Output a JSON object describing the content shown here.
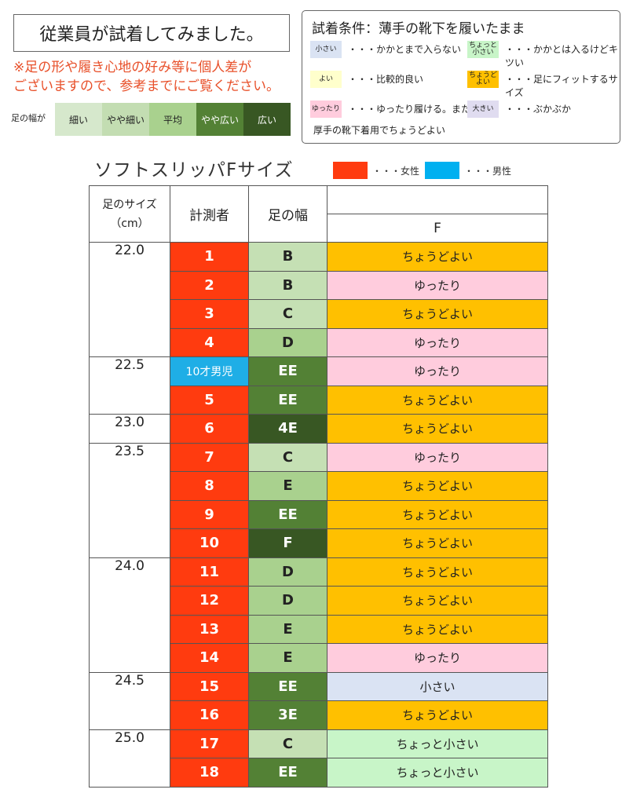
{
  "title": "従業員が試着してみました。",
  "note_lines": [
    "※足の形や履き心地の好み等に個人差が",
    "ございますので、参考までにご覧ください。"
  ],
  "width_scale": {
    "label": "足の幅が",
    "items": [
      {
        "label": "細い",
        "color": "#d6e8cc"
      },
      {
        "label": "やや細い",
        "color": "#c3ddb2"
      },
      {
        "label": "平均",
        "color": "#a9d18e"
      },
      {
        "label": "やや広い",
        "color": "#538135",
        "dark": true
      },
      {
        "label": "広い",
        "color": "#385723",
        "dark": true
      }
    ]
  },
  "legend": {
    "title": "試着条件：薄手の靴下を履いたまま",
    "items": [
      {
        "chip": "小さい",
        "text": "・・・かかとまで入らない",
        "color": "#dae3f3"
      },
      {
        "chip": "ちょっと\n小さい",
        "text": "・・・かかとは入るけどキツい",
        "color": "#c8f5c8"
      },
      {
        "chip": "よい",
        "text": "・・・比較的良い",
        "color": "#ffffcc"
      },
      {
        "chip": "ちょうど\nよい",
        "text": "・・・足にフィットするサイズ",
        "color": "#ffc000"
      },
      {
        "chip": "ゆったり",
        "text": "・・・ゆったり履ける。または",
        "color": "#ffccdd"
      },
      {
        "chip": "大きい",
        "text": "・・・ぶかぶか",
        "color": "#e0dcf0"
      }
    ],
    "extra": "厚手の靴下着用でちょうどよい"
  },
  "chart_title": "ソフトスリッパFサイズ",
  "gender_legend": [
    {
      "label": "・・・女性",
      "color": "#ff3b0f"
    },
    {
      "label": "・・・男性",
      "color": "#00b0f0"
    }
  ],
  "table": {
    "headers": {
      "size_line1": "足のサイズ",
      "size_line2": "（cm）",
      "person": "計測者",
      "width": "足の幅",
      "f": "F"
    },
    "groups": [
      {
        "size": "22.0",
        "rows": [
          {
            "id": "1",
            "width": "B",
            "fit": "ちょうどよい"
          },
          {
            "id": "2",
            "width": "B",
            "fit": "ゆったり"
          },
          {
            "id": "3",
            "width": "C",
            "fit": "ちょうどよい"
          },
          {
            "id": "4",
            "width": "D",
            "fit": "ゆったり"
          }
        ]
      },
      {
        "size": "22.5",
        "rows": [
          {
            "id": "10才男児",
            "male": true,
            "width": "EE",
            "fit": "ゆったり"
          },
          {
            "id": "5",
            "width": "EE",
            "fit": "ちょうどよい"
          }
        ]
      },
      {
        "size": "23.0",
        "rows": [
          {
            "id": "6",
            "width": "4E",
            "fit": "ちょうどよい"
          }
        ]
      },
      {
        "size": "23.5",
        "rows": [
          {
            "id": "7",
            "width": "C",
            "fit": "ゆったり"
          },
          {
            "id": "8",
            "width": "E",
            "fit": "ちょうどよい"
          },
          {
            "id": "9",
            "width": "EE",
            "fit": "ちょうどよい"
          },
          {
            "id": "10",
            "width": "F",
            "fit": "ちょうどよい"
          }
        ]
      },
      {
        "size": "24.0",
        "rows": [
          {
            "id": "11",
            "width": "D",
            "fit": "ちょうどよい"
          },
          {
            "id": "12",
            "width": "D",
            "fit": "ちょうどよい"
          },
          {
            "id": "13",
            "width": "E",
            "fit": "ちょうどよい"
          },
          {
            "id": "14",
            "width": "E",
            "fit": "ゆったり"
          }
        ]
      },
      {
        "size": "24.5",
        "rows": [
          {
            "id": "15",
            "width": "EE",
            "fit": "小さい"
          },
          {
            "id": "16",
            "width": "3E",
            "fit": "ちょうどよい"
          }
        ]
      },
      {
        "size": "25.0",
        "rows": [
          {
            "id": "17",
            "width": "C",
            "fit": "ちょっと小さい"
          },
          {
            "id": "18",
            "width": "EE",
            "fit": "ちょっと小さい"
          }
        ]
      }
    ],
    "width_colors": {
      "B": "#c5e0b4",
      "C": "#c5e0b4",
      "D": "#a9d18e",
      "E": "#a9d18e",
      "EE": "#538135",
      "3E": "#538135",
      "4E": "#385723",
      "F": "#385723"
    },
    "fit_colors": {
      "ちょうどよい": "#ffc000",
      "ゆったり": "#ffccdd",
      "小さい": "#dae3f3",
      "ちょっと小さい": "#c8f5c8"
    }
  }
}
